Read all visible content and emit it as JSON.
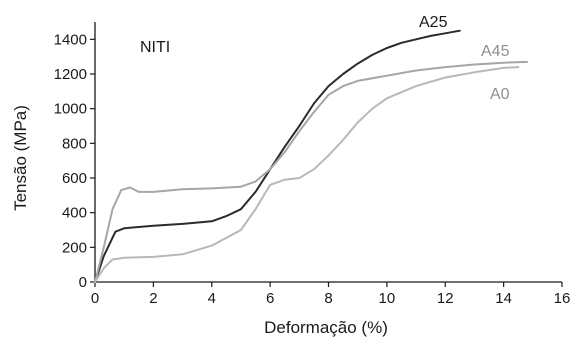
{
  "chart_data": {
    "type": "line",
    "annotation": "NITI",
    "xlabel": "Deformação (%)",
    "ylabel": "Tensão (MPa)",
    "xlim": [
      0,
      16
    ],
    "ylim": [
      0,
      1500
    ],
    "xticks": [
      "0",
      "2",
      "4",
      "6",
      "8",
      "10",
      "12",
      "14",
      "16"
    ],
    "yticks": [
      "0",
      "200",
      "400",
      "600",
      "800",
      "1000",
      "1200",
      "1400"
    ],
    "grid": false,
    "series": [
      {
        "name": "A25",
        "color": "#2b2b2b",
        "points": [
          [
            0,
            0
          ],
          [
            0.3,
            150
          ],
          [
            0.7,
            290
          ],
          [
            1.0,
            310
          ],
          [
            2,
            325
          ],
          [
            3,
            335
          ],
          [
            4,
            350
          ],
          [
            4.5,
            380
          ],
          [
            5.0,
            420
          ],
          [
            5.5,
            520
          ],
          [
            6.0,
            650
          ],
          [
            6.5,
            780
          ],
          [
            7.0,
            900
          ],
          [
            7.5,
            1030
          ],
          [
            8.0,
            1130
          ],
          [
            8.5,
            1200
          ],
          [
            9.0,
            1260
          ],
          [
            9.5,
            1310
          ],
          [
            10.0,
            1350
          ],
          [
            10.5,
            1380
          ],
          [
            11.0,
            1400
          ],
          [
            11.5,
            1420
          ],
          [
            12.0,
            1435
          ],
          [
            12.5,
            1450
          ]
        ]
      },
      {
        "name": "A45",
        "color": "#a6a6a6",
        "points": [
          [
            0,
            0
          ],
          [
            0.3,
            200
          ],
          [
            0.6,
            420
          ],
          [
            0.9,
            530
          ],
          [
            1.2,
            545
          ],
          [
            1.5,
            520
          ],
          [
            2,
            520
          ],
          [
            3,
            535
          ],
          [
            4,
            540
          ],
          [
            5,
            550
          ],
          [
            5.5,
            580
          ],
          [
            6.0,
            650
          ],
          [
            6.5,
            750
          ],
          [
            7.0,
            870
          ],
          [
            7.5,
            980
          ],
          [
            8.0,
            1080
          ],
          [
            8.5,
            1130
          ],
          [
            9.0,
            1160
          ],
          [
            10.0,
            1190
          ],
          [
            11.0,
            1220
          ],
          [
            12.0,
            1240
          ],
          [
            13.0,
            1255
          ],
          [
            14.0,
            1265
          ],
          [
            14.8,
            1270
          ]
        ]
      },
      {
        "name": "A0",
        "color": "#b8b8b8",
        "points": [
          [
            0,
            0
          ],
          [
            0.3,
            80
          ],
          [
            0.6,
            130
          ],
          [
            1,
            140
          ],
          [
            2,
            145
          ],
          [
            3,
            160
          ],
          [
            4,
            210
          ],
          [
            5,
            300
          ],
          [
            5.5,
            420
          ],
          [
            6.0,
            560
          ],
          [
            6.5,
            590
          ],
          [
            7.0,
            600
          ],
          [
            7.5,
            650
          ],
          [
            8.0,
            730
          ],
          [
            8.5,
            820
          ],
          [
            9.0,
            920
          ],
          [
            9.5,
            1000
          ],
          [
            10.0,
            1060
          ],
          [
            11.0,
            1130
          ],
          [
            12.0,
            1180
          ],
          [
            13.0,
            1210
          ],
          [
            14.0,
            1235
          ],
          [
            14.5,
            1240
          ]
        ]
      }
    ]
  }
}
